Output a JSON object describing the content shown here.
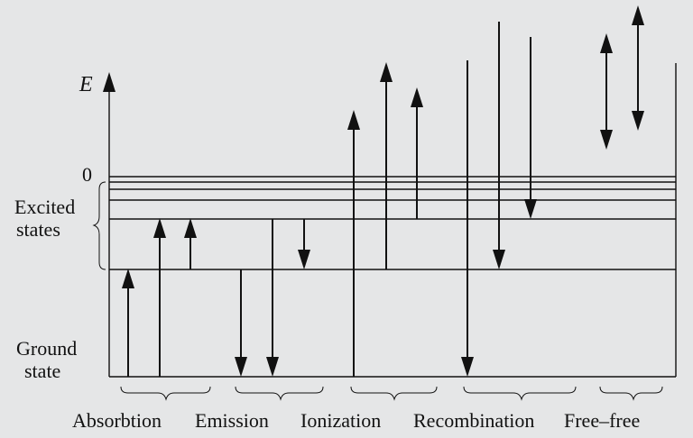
{
  "axis": {
    "label": "E",
    "zero_label": "0"
  },
  "labels": {
    "excited_line1": "Excited",
    "excited_line2": "states",
    "ground_line1": "Ground",
    "ground_line2": "state"
  },
  "groups": [
    {
      "id": "absorption",
      "label": "Absorbtion"
    },
    {
      "id": "emission",
      "label": "Emission"
    },
    {
      "id": "ionization",
      "label": "Ionization"
    },
    {
      "id": "recombination",
      "label": "Recombination"
    },
    {
      "id": "freefree",
      "label": "Free–free"
    }
  ],
  "colors": {
    "background": "#e5e6e7",
    "ink": "#111111"
  }
}
